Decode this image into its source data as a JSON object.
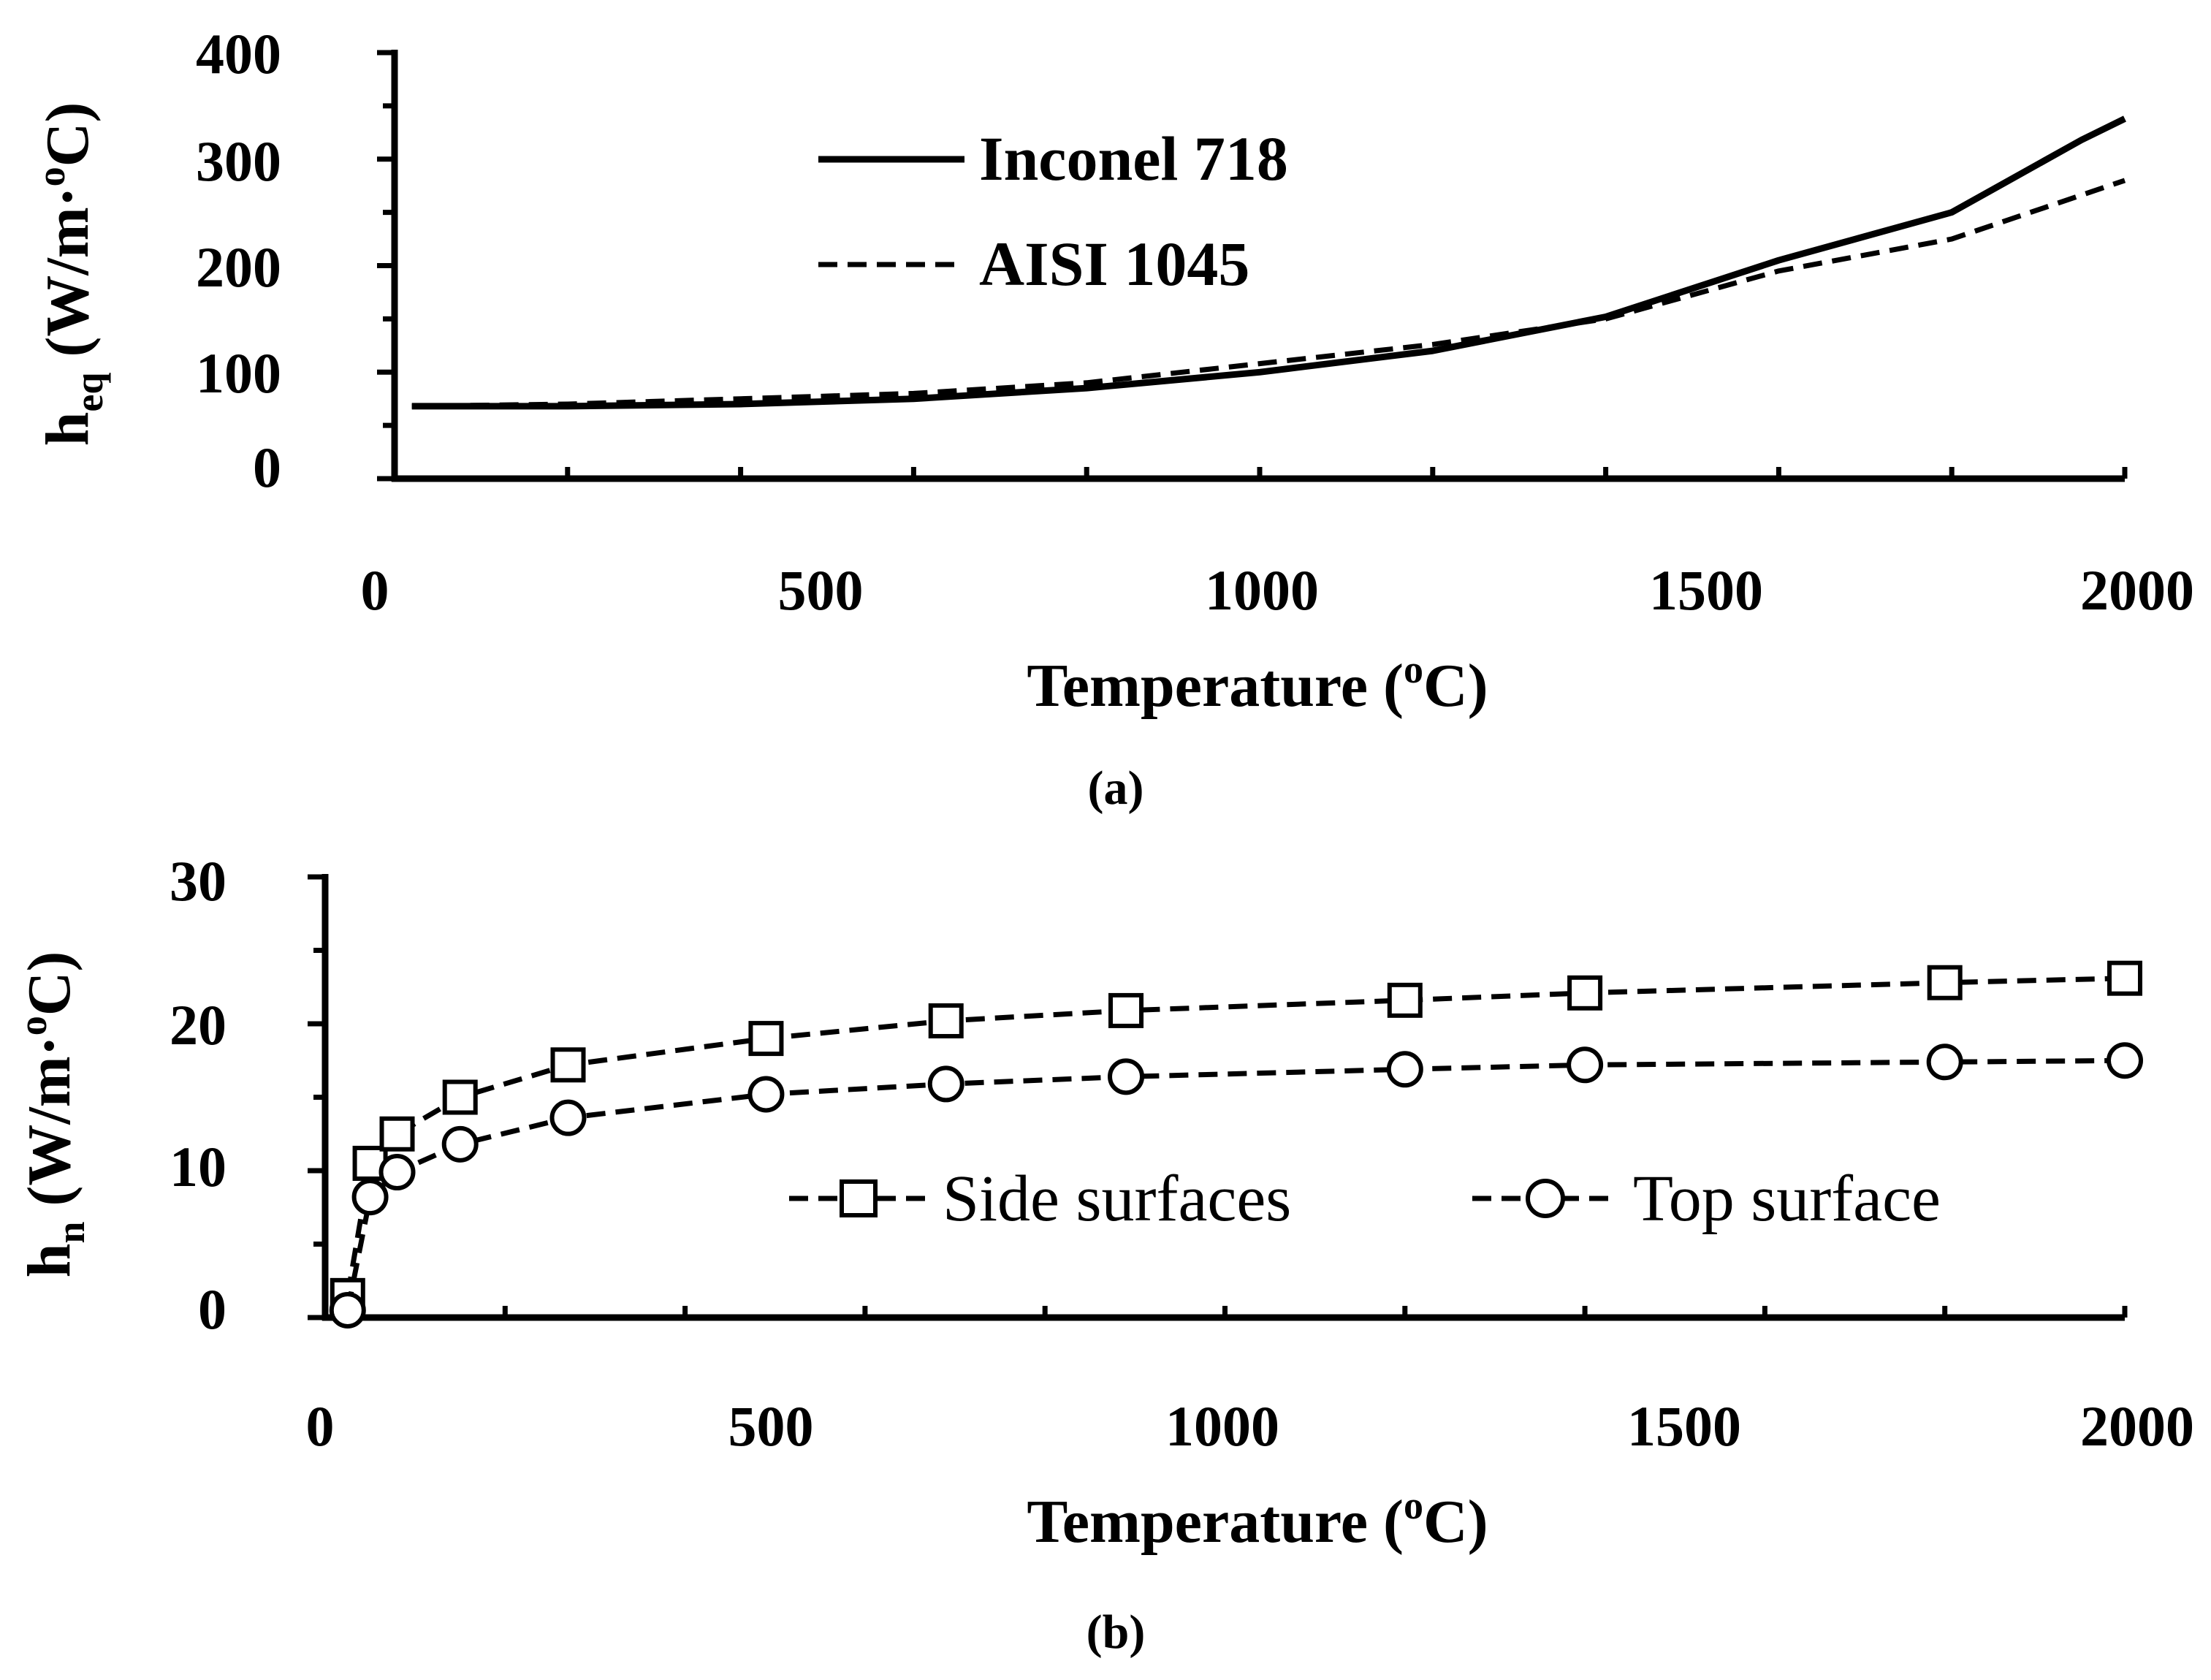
{
  "chart_data": [
    {
      "type": "line",
      "panel_label": "(a)",
      "xlabel_base": "Temperature (",
      "xlabel_sup": "o",
      "xlabel_tail": "C)",
      "ylabel_base": "h",
      "ylabel_sub": "eq",
      "ylabel_unit_base": " (W/m·",
      "ylabel_unit_sup": "o",
      "ylabel_unit_tail": "C)",
      "xlim": [
        0,
        2000
      ],
      "ylim": [
        0,
        400
      ],
      "x_ticks": [
        0,
        500,
        1000,
        1500,
        2000
      ],
      "y_ticks": [
        0,
        100,
        200,
        300,
        400
      ],
      "x_tick_labels": [
        "0",
        "500",
        "1000",
        "1500",
        "2000"
      ],
      "y_tick_labels": [
        "0",
        "100",
        "200",
        "300",
        "400"
      ],
      "grid": false,
      "legend_position": "top-center",
      "series": [
        {
          "name": "Inconel 718",
          "style": "solid",
          "x": [
            20,
            200,
            400,
            600,
            800,
            1000,
            1200,
            1400,
            1600,
            1800,
            1950,
            2000
          ],
          "y": [
            68,
            68,
            70,
            75,
            85,
            100,
            120,
            152,
            205,
            250,
            318,
            338
          ]
        },
        {
          "name": "AISI 1045",
          "style": "dashed",
          "x": [
            20,
            200,
            400,
            600,
            800,
            1000,
            1200,
            1400,
            1600,
            1800,
            2000
          ],
          "y": [
            68,
            70,
            75,
            80,
            90,
            108,
            126,
            150,
            195,
            225,
            280
          ]
        }
      ]
    },
    {
      "type": "line",
      "panel_label": "(b)",
      "xlabel_base": "Temperature (",
      "xlabel_sup": "o",
      "xlabel_tail": "C)",
      "ylabel_base": "h",
      "ylabel_sub": "n",
      "ylabel_unit_base": " (W/m·",
      "ylabel_unit_sup": "o",
      "ylabel_unit_tail": "C)",
      "xlim": [
        0,
        2000
      ],
      "ylim": [
        0,
        30
      ],
      "x_ticks": [
        0,
        500,
        1000,
        1500,
        2000
      ],
      "y_ticks": [
        0,
        10,
        20,
        30
      ],
      "x_tick_labels": [
        "0",
        "500",
        "1000",
        "1500",
        "2000"
      ],
      "y_tick_labels": [
        "0",
        "10",
        "20",
        "30"
      ],
      "grid": false,
      "legend_position": "center-right",
      "series": [
        {
          "name": "Side surfaces",
          "marker": "square",
          "style": "dashed",
          "x": [
            25,
            50,
            80,
            150,
            270,
            490,
            690,
            890,
            1200,
            1400,
            1800,
            2000
          ],
          "y": [
            1.5,
            10.5,
            12.5,
            15,
            17.2,
            19,
            20.2,
            20.9,
            21.6,
            22.1,
            22.8,
            23.1
          ]
        },
        {
          "name": "Top surface",
          "marker": "circle",
          "style": "dashed",
          "x": [
            25,
            50,
            80,
            150,
            270,
            490,
            690,
            890,
            1200,
            1400,
            1800,
            2000
          ],
          "y": [
            0.5,
            8.2,
            9.9,
            11.8,
            13.6,
            15.2,
            15.9,
            16.4,
            16.9,
            17.2,
            17.4,
            17.5
          ]
        }
      ]
    }
  ]
}
